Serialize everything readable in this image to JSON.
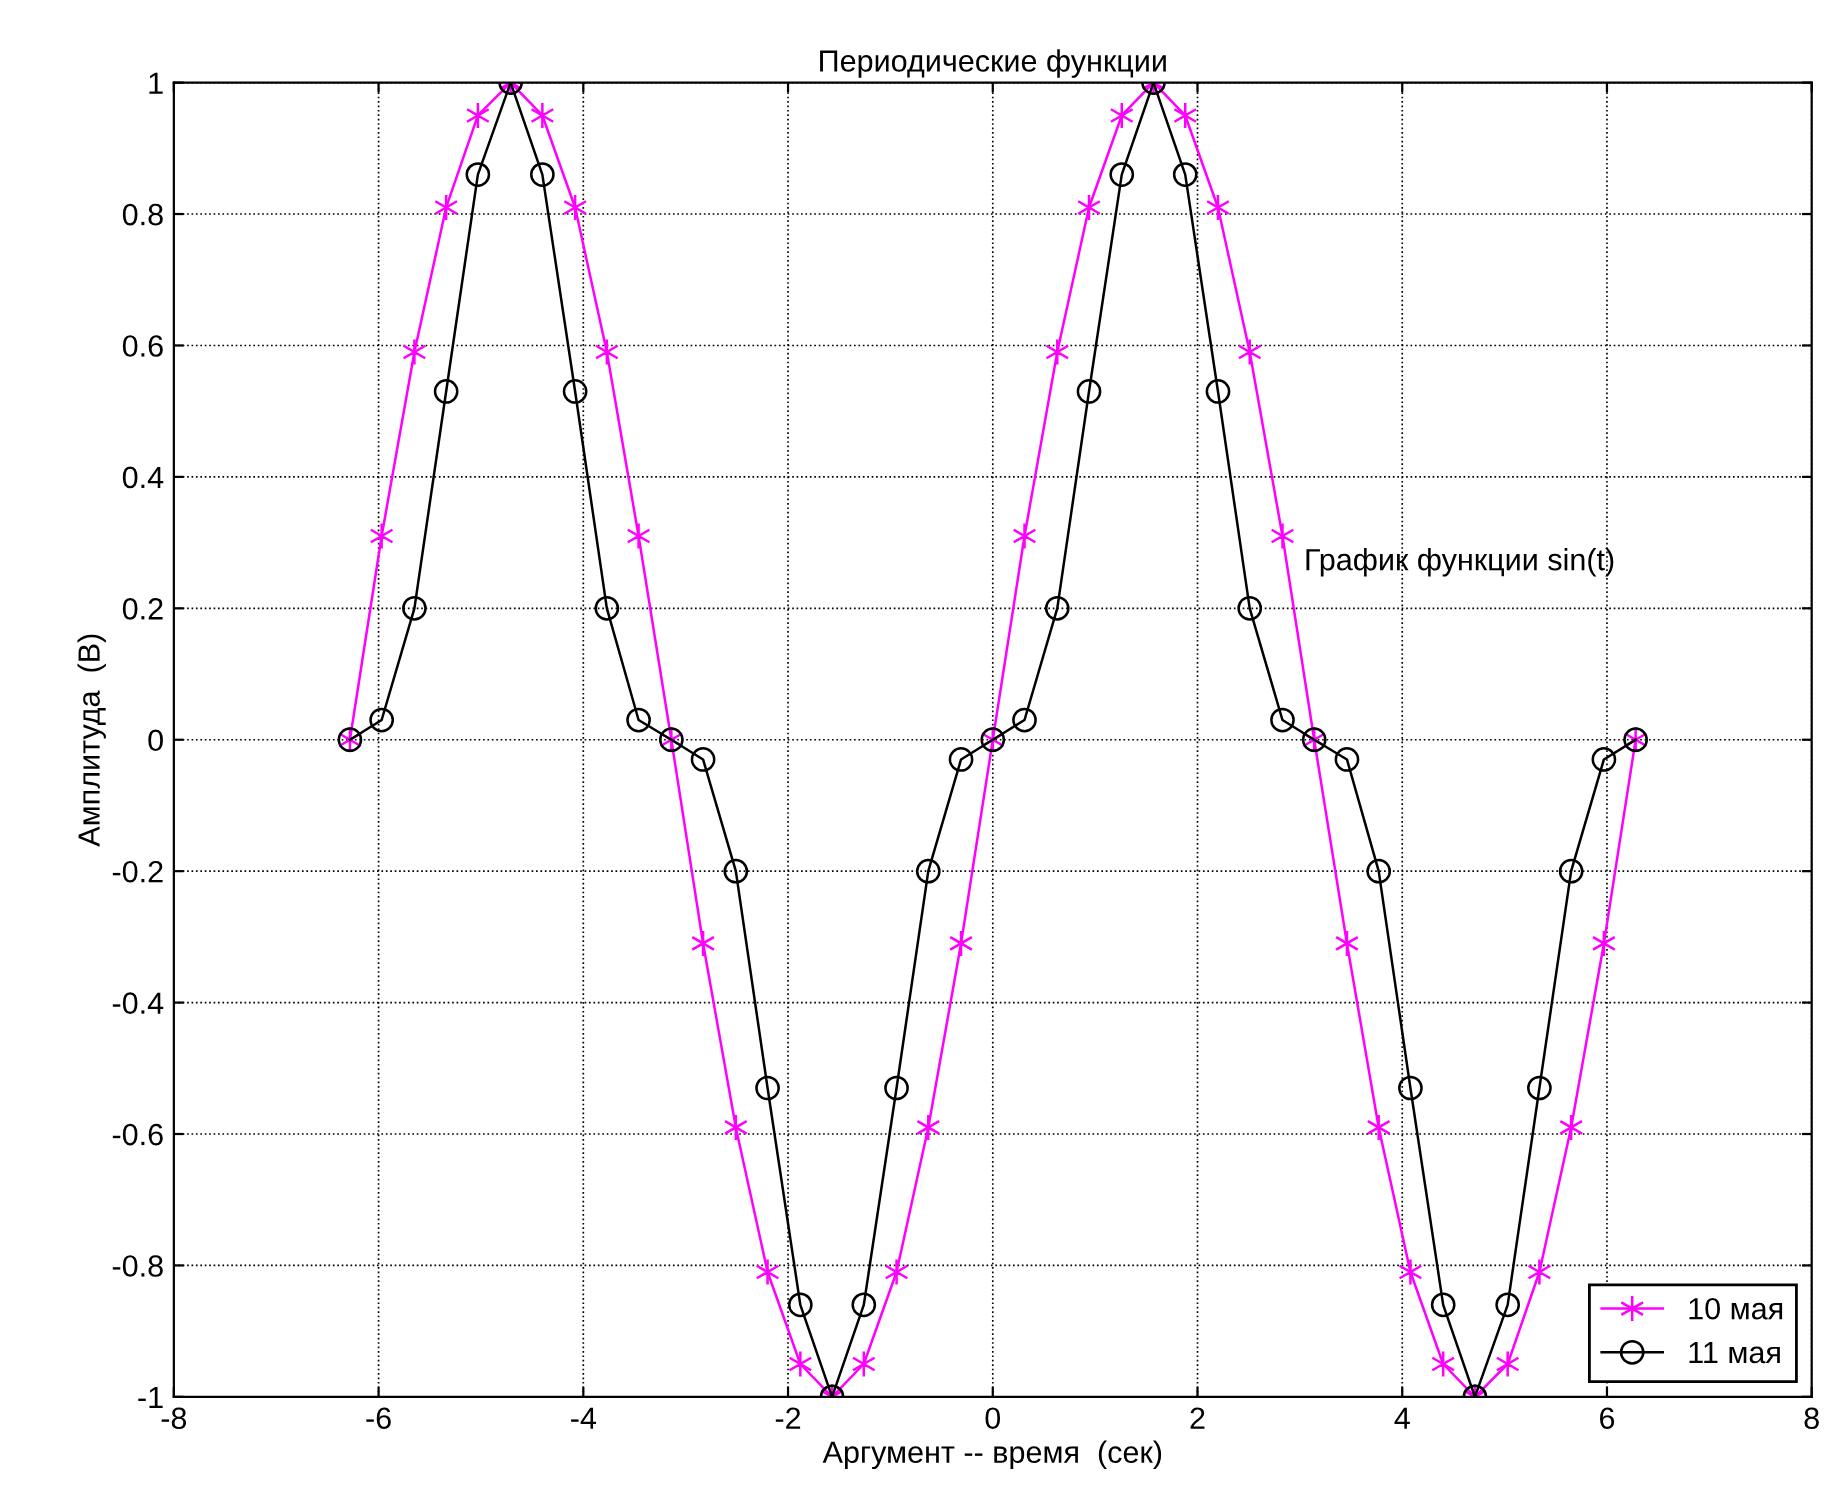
{
  "chart_data": {
    "type": "line",
    "title": "Периодические функции",
    "xlabel": "Аргумент -- время  (сек)",
    "ylabel": "Амплитуда  (В)",
    "x": [
      -6.28,
      -5.97,
      -5.65,
      -5.34,
      -5.03,
      -4.71,
      -4.4,
      -4.08,
      -3.77,
      -3.46,
      -3.14,
      -2.83,
      -2.51,
      -2.2,
      -1.88,
      -1.57,
      -1.26,
      -0.94,
      -0.63,
      -0.31,
      0,
      0.31,
      0.63,
      0.94,
      1.26,
      1.57,
      1.88,
      2.2,
      2.51,
      2.83,
      3.14,
      3.46,
      3.77,
      4.08,
      4.4,
      4.71,
      5.03,
      5.34,
      5.65,
      5.97,
      6.28
    ],
    "series": [
      {
        "name": "10 мая",
        "color": "#ff00ff",
        "marker": "cross",
        "values": [
          0,
          0.31,
          0.59,
          0.81,
          0.95,
          1,
          0.95,
          0.81,
          0.59,
          0.31,
          0,
          -0.31,
          -0.59,
          -0.81,
          -0.95,
          -1,
          -0.95,
          -0.81,
          -0.59,
          -0.31,
          0,
          0.31,
          0.59,
          0.81,
          0.95,
          1,
          0.95,
          0.81,
          0.59,
          0.31,
          0,
          -0.31,
          -0.59,
          -0.81,
          -0.95,
          -1,
          -0.95,
          -0.81,
          -0.59,
          -0.31,
          0
        ]
      },
      {
        "name": "11 мая",
        "color": "#000000",
        "marker": "circle",
        "values": [
          0,
          0.03,
          0.2,
          0.53,
          0.86,
          1,
          0.86,
          0.53,
          0.2,
          0.03,
          0,
          -0.03,
          -0.2,
          -0.53,
          -0.86,
          -1,
          -0.86,
          -0.53,
          -0.2,
          -0.03,
          0,
          0.03,
          0.2,
          0.53,
          0.86,
          1,
          0.86,
          0.53,
          0.2,
          0.03,
          0,
          -0.03,
          -0.2,
          -0.53,
          -0.86,
          -1,
          -0.86,
          -0.53,
          -0.2,
          -0.03,
          0
        ]
      }
    ],
    "annotations": [
      "График функции sin(t)"
    ],
    "xlim": [
      -8,
      8
    ],
    "xticks": [
      -8,
      -6,
      -4,
      -2,
      0,
      2,
      4,
      6,
      8
    ],
    "ylim": [
      -1,
      1
    ],
    "yticks": [
      -1,
      -0.8,
      -0.6,
      -0.4,
      -0.2,
      0,
      0.2,
      0.4,
      0.6,
      0.8,
      1
    ],
    "grid": true,
    "legend": "bottom right",
    "line_style": "solid"
  }
}
